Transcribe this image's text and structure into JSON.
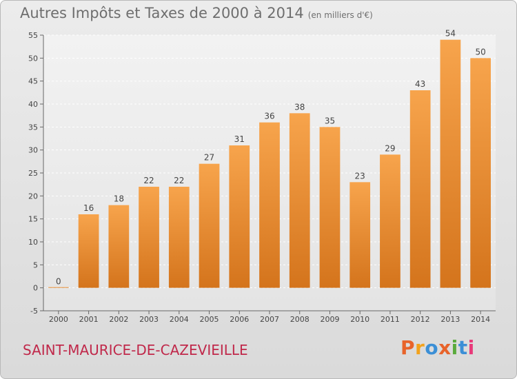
{
  "header": {
    "title": "Autres Impôts et Taxes de 2000 à 2014",
    "unit": "(en milliers d'€)"
  },
  "footer": {
    "commune": "SAINT-MAURICE-DE-CAZEVIEILLE",
    "logo": "Proxiti",
    "logo_colors": [
      "#e8632a",
      "#f2a21c",
      "#3b8fd6",
      "#e8632a",
      "#5aaa3c",
      "#3b8fd6",
      "#e83a7a"
    ]
  },
  "chart_data": {
    "type": "bar",
    "title": "Autres Impôts et Taxes de 2000 à 2014",
    "subtitle": "(en milliers d'€)",
    "categories": [
      "2000",
      "2001",
      "2002",
      "2003",
      "2004",
      "2005",
      "2006",
      "2007",
      "2008",
      "2009",
      "2010",
      "2011",
      "2012",
      "2013",
      "2014"
    ],
    "values": [
      0,
      16,
      18,
      22,
      22,
      27,
      31,
      36,
      38,
      35,
      23,
      29,
      43,
      54,
      50
    ],
    "value_labels": [
      "0",
      "16",
      "18",
      "22",
      "22",
      "27",
      "31",
      "36",
      "38",
      "35",
      "23",
      "29",
      "43",
      "54",
      "50"
    ],
    "ylim": [
      -5,
      55
    ],
    "yticks": [
      -5,
      0,
      5,
      10,
      15,
      20,
      25,
      30,
      35,
      40,
      45,
      50,
      55
    ],
    "ytick_labels": [
      "-5",
      "0",
      "5",
      "10",
      "15",
      "20",
      "25",
      "30",
      "35",
      "40",
      "45",
      "50",
      "55"
    ],
    "grid": true,
    "bar_color_top": "#f7a44c",
    "bar_color_bottom": "#d4741c"
  }
}
